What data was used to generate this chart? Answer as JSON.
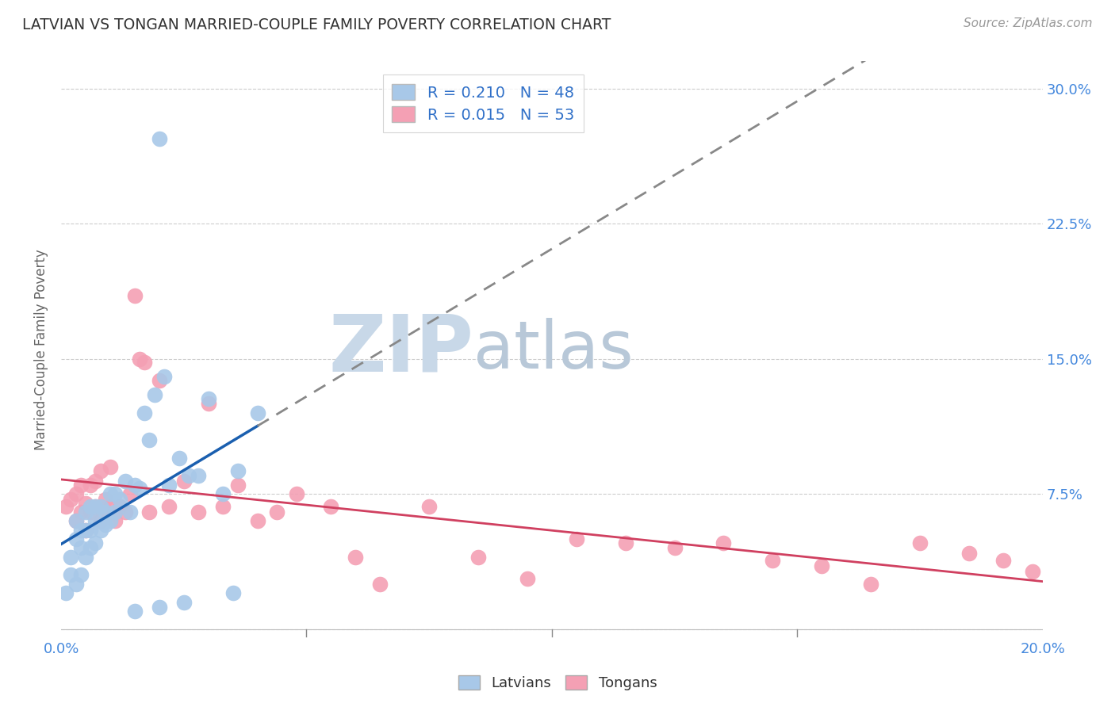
{
  "title": "LATVIAN VS TONGAN MARRIED-COUPLE FAMILY POVERTY CORRELATION CHART",
  "source": "Source: ZipAtlas.com",
  "ylabel": "Married-Couple Family Poverty",
  "xlim": [
    0.0,
    0.2
  ],
  "ylim": [
    -0.005,
    0.315
  ],
  "xticks": [
    0.0,
    0.05,
    0.1,
    0.15,
    0.2
  ],
  "xticklabels": [
    "0.0%",
    "",
    "",
    "",
    "20.0%"
  ],
  "yticks": [
    0.0,
    0.075,
    0.15,
    0.225,
    0.3
  ],
  "yticklabels": [
    "",
    "7.5%",
    "15.0%",
    "22.5%",
    "30.0%"
  ],
  "latvian_color": "#a8c8e8",
  "tongan_color": "#f4a0b4",
  "latvian_line_color": "#1a5faf",
  "tongan_line_color": "#d04060",
  "legend_text_color": "#3070c8",
  "R_latvian": 0.21,
  "N_latvian": 48,
  "R_tongan": 0.015,
  "N_tongan": 53,
  "latvians_x": [
    0.001,
    0.002,
    0.002,
    0.003,
    0.003,
    0.003,
    0.004,
    0.004,
    0.004,
    0.005,
    0.005,
    0.005,
    0.006,
    0.006,
    0.006,
    0.007,
    0.007,
    0.007,
    0.008,
    0.008,
    0.009,
    0.009,
    0.01,
    0.01,
    0.011,
    0.011,
    0.012,
    0.013,
    0.014,
    0.015,
    0.016,
    0.017,
    0.018,
    0.019,
    0.02,
    0.021,
    0.022,
    0.024,
    0.026,
    0.028,
    0.03,
    0.033,
    0.036,
    0.04,
    0.015,
    0.02,
    0.025,
    0.035
  ],
  "latvians_y": [
    0.02,
    0.03,
    0.04,
    0.025,
    0.05,
    0.06,
    0.03,
    0.045,
    0.055,
    0.04,
    0.055,
    0.065,
    0.045,
    0.055,
    0.068,
    0.048,
    0.06,
    0.068,
    0.055,
    0.068,
    0.058,
    0.065,
    0.06,
    0.075,
    0.065,
    0.075,
    0.072,
    0.082,
    0.065,
    0.08,
    0.078,
    0.12,
    0.105,
    0.13,
    0.272,
    0.14,
    0.08,
    0.095,
    0.085,
    0.085,
    0.128,
    0.075,
    0.088,
    0.12,
    0.01,
    0.012,
    0.015,
    0.02
  ],
  "tongans_x": [
    0.001,
    0.002,
    0.003,
    0.003,
    0.004,
    0.004,
    0.005,
    0.005,
    0.006,
    0.006,
    0.007,
    0.007,
    0.008,
    0.008,
    0.009,
    0.009,
    0.01,
    0.01,
    0.011,
    0.012,
    0.013,
    0.014,
    0.015,
    0.016,
    0.017,
    0.018,
    0.02,
    0.022,
    0.025,
    0.028,
    0.03,
    0.033,
    0.036,
    0.04,
    0.044,
    0.048,
    0.055,
    0.06,
    0.065,
    0.075,
    0.085,
    0.095,
    0.105,
    0.115,
    0.125,
    0.135,
    0.145,
    0.155,
    0.165,
    0.175,
    0.185,
    0.192,
    0.198
  ],
  "tongans_y": [
    0.068,
    0.072,
    0.06,
    0.075,
    0.065,
    0.08,
    0.055,
    0.07,
    0.065,
    0.08,
    0.068,
    0.082,
    0.06,
    0.088,
    0.065,
    0.072,
    0.068,
    0.09,
    0.06,
    0.068,
    0.065,
    0.075,
    0.185,
    0.15,
    0.148,
    0.065,
    0.138,
    0.068,
    0.082,
    0.065,
    0.125,
    0.068,
    0.08,
    0.06,
    0.065,
    0.075,
    0.068,
    0.04,
    0.025,
    0.068,
    0.04,
    0.028,
    0.05,
    0.048,
    0.045,
    0.048,
    0.038,
    0.035,
    0.025,
    0.048,
    0.042,
    0.038,
    0.032
  ],
  "background_color": "#ffffff",
  "grid_color": "#cccccc",
  "watermark_zip": "ZIP",
  "watermark_atlas": "atlas",
  "watermark_color_zip": "#c8d8e8",
  "watermark_color_atlas": "#b8c8d8"
}
